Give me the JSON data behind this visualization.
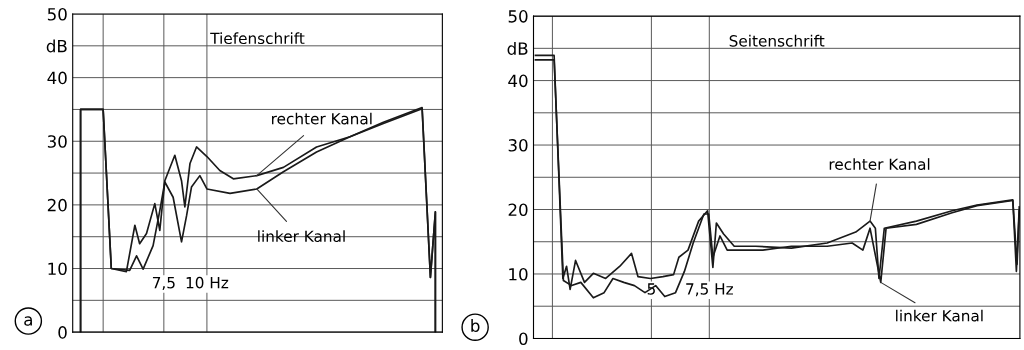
{
  "chart_data": [
    {
      "type": "line",
      "title": "Tiefenschrift",
      "log": "x",
      "xlim": [
        4.08,
        48.2
      ],
      "ylim": [
        0,
        50
      ],
      "xticks": [
        {
          "value": 5,
          "label": null
        },
        {
          "value": 7.5,
          "label": "7,5"
        },
        {
          "value": 10,
          "label": "10 Hz"
        }
      ],
      "yticks": [
        0,
        {
          "value": 5,
          "label": null
        },
        10,
        {
          "value": 15,
          "label": null
        },
        20,
        {
          "value": 25,
          "label": null
        },
        30,
        {
          "value": 35,
          "label": null
        },
        40,
        {
          "value": 45,
          "label": "dB"
        },
        50
      ],
      "grid": true,
      "legend": false,
      "series": [
        {
          "color": "#1a1a1a",
          "x": [
            4.3,
            4.3,
            5.0,
            5.28,
            5.84,
            6.18,
            6.38,
            6.68,
            7.06,
            7.3,
            7.55,
            8.07,
            8.44,
            8.63,
            8.93,
            9.33,
            10,
            10.9,
            11.93,
            13.95,
            16.67,
            20.8,
            26.0,
            32.5,
            42.1,
            44.5,
            46.0,
            46.0
          ],
          "values": [
            0,
            35,
            35,
            10,
            9.5,
            16.8,
            13.9,
            15.5,
            20.2,
            16,
            23.8,
            27.8,
            23.8,
            19.7,
            26.5,
            29.1,
            27.6,
            25.4,
            24.1,
            24.6,
            25.9,
            29.1,
            30.7,
            33,
            35.3,
            8.6,
            18.9,
            0
          ]
        },
        {
          "color": "#1a1a1a",
          "x": [
            4.3,
            4.3,
            5.0,
            5.28,
            5.97,
            6.25,
            6.53,
            6.98,
            7.3,
            7.55,
            7.98,
            8.44,
            8.73,
            9.02,
            9.54,
            10,
            11.67,
            13.95,
            16.67,
            20.8,
            26.0,
            32.5,
            42.1,
            44.5,
            46.0,
            46.0
          ],
          "values": [
            0,
            35,
            35,
            10,
            9.7,
            12,
            9.9,
            13.6,
            19.1,
            23.6,
            21.2,
            14.2,
            18.3,
            22.8,
            24.6,
            22.5,
            21.8,
            22.5,
            25.2,
            28.3,
            30.7,
            32.8,
            35.1,
            8.6,
            18.9,
            0
          ]
        }
      ],
      "annotations": [
        {
          "text": "rechter Kanal",
          "x": 13.95,
          "y": 24.6
        },
        {
          "text": "linker Kanal",
          "x": 13.95,
          "y": 22.5
        },
        "a"
      ]
    },
    {
      "type": "line",
      "title": "Seitenschrift",
      "log": "x",
      "xlim": [
        2.19,
        66.0
      ],
      "ylim": [
        0,
        50
      ],
      "xticks": [
        {
          "value": 2.5,
          "label": null
        },
        {
          "value": 5,
          "label": "5"
        },
        {
          "value": 7.5,
          "label": "7,5 Hz"
        }
      ],
      "yticks": [
        0,
        {
          "value": 5,
          "label": null
        },
        10,
        {
          "value": 15,
          "label": null
        },
        20,
        {
          "value": 25,
          "label": null
        },
        30,
        {
          "value": 35,
          "label": null
        },
        40,
        {
          "value": 45,
          "label": "dB"
        },
        50
      ],
      "grid": true,
      "legend": false,
      "series": [
        {
          "color": "#1a1a1a",
          "x": [
            2.22,
            2.53,
            2.69,
            2.76,
            2.83,
            2.94,
            3.13,
            3.33,
            3.63,
            4.01,
            4.35,
            4.55,
            4.97,
            5.42,
            5.84,
            6.06,
            6.46,
            6.96,
            7.41,
            7.69,
            7.88,
            8.29,
            8.93,
            10.38,
            13.33,
            17.12,
            20.91,
            23.11,
            23.99,
            24.6,
            25.54,
            31.98,
            41.06,
            48.9,
            62.8,
            64.4,
            65.7
          ],
          "values": [
            43.9,
            43.9,
            9.3,
            11.2,
            7.6,
            12.1,
            8.7,
            10.1,
            9.3,
            11.2,
            13.2,
            9.6,
            9.3,
            9.6,
            9.9,
            12.6,
            13.7,
            18.2,
            19.8,
            11.0,
            17.9,
            16.2,
            14.3,
            14.3,
            14.0,
            14.8,
            16.5,
            18.2,
            17.1,
            9.3,
            17.1,
            18.2,
            19.8,
            20.7,
            21.5,
            10.4,
            20.4
          ]
        },
        {
          "color": "#1a1a1a",
          "x": [
            2.22,
            2.53,
            2.7,
            2.86,
            3.05,
            3.33,
            3.59,
            3.82,
            4.12,
            4.44,
            4.78,
            5.15,
            5.49,
            5.92,
            6.3,
            6.7,
            7.22,
            7.47,
            7.69,
            8.08,
            8.5,
            9.05,
            10.91,
            13.33,
            17.12,
            20.39,
            21.98,
            23.11,
            24.91,
            25.86,
            31.98,
            41.06,
            48.9,
            62.8,
            64.7,
            65.7
          ],
          "values": [
            43.2,
            43.2,
            9.0,
            8.2,
            8.7,
            6.3,
            7.1,
            9.3,
            8.7,
            8.2,
            7.1,
            8.2,
            6.5,
            7.1,
            10.4,
            14.8,
            19.3,
            19.3,
            12.6,
            15.9,
            13.7,
            13.7,
            13.7,
            14.3,
            14.3,
            14.8,
            13.7,
            17.1,
            8.7,
            17.1,
            17.7,
            19.5,
            20.6,
            21.4,
            11.5,
            19.8
          ]
        }
      ],
      "annotations": [
        {
          "text": "rechter Kanal",
          "x": 23.11,
          "y": 18.2
        },
        {
          "text": "linker Kanal",
          "x": 24.91,
          "y": 8.7
        },
        "b"
      ]
    }
  ]
}
